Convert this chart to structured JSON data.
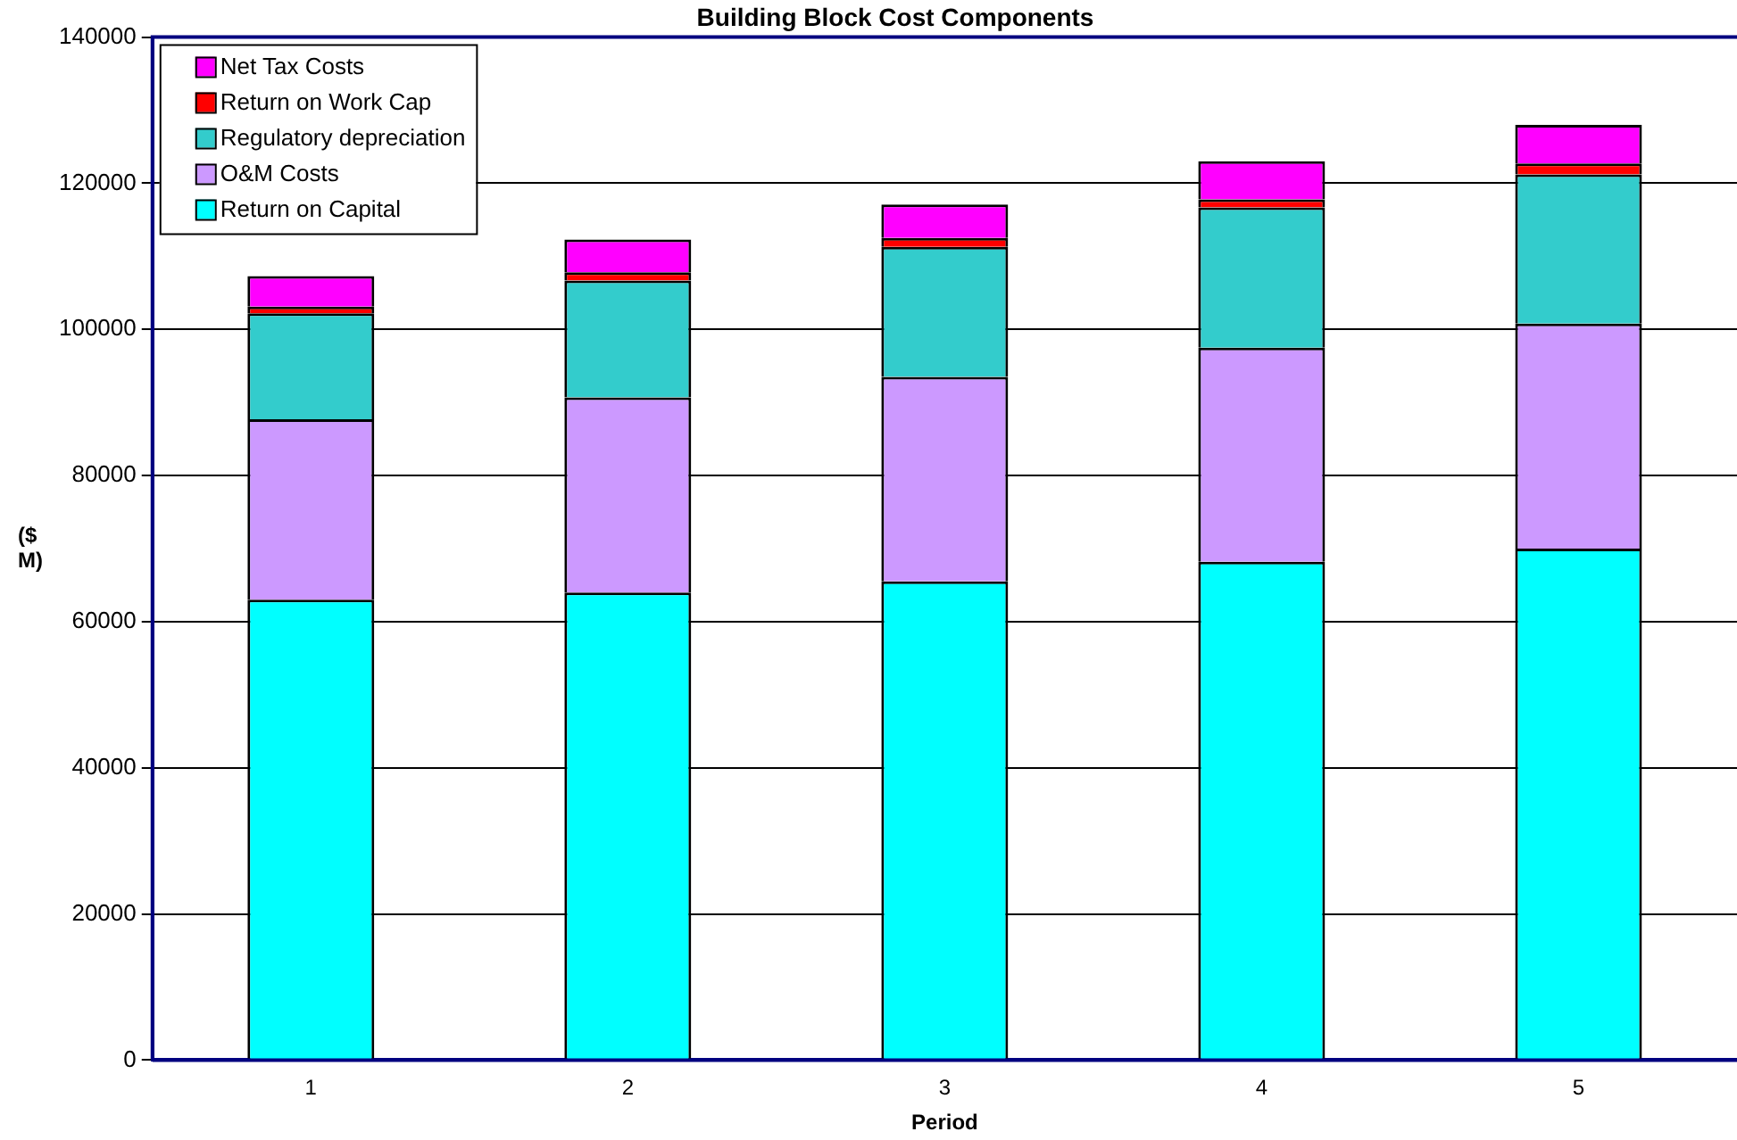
{
  "chart_data": {
    "type": "bar",
    "title": "Building Block Cost Components",
    "xlabel": "Period",
    "ylabel": "($ M)",
    "categories": [
      "1",
      "2",
      "3",
      "4",
      "5"
    ],
    "stacked": true,
    "series": [
      {
        "name": "Return on Capital",
        "color": "#00ffff",
        "values": [
          63000,
          64000,
          65500,
          68200,
          70000
        ]
      },
      {
        "name": "O&M Costs",
        "color": "#cc99ff",
        "values": [
          24700,
          26700,
          28000,
          29300,
          30800
        ]
      },
      {
        "name": "Regulatory depreciation",
        "color": "#33cccc",
        "values": [
          14500,
          16000,
          17800,
          19200,
          20400
        ]
      },
      {
        "name": "Return on Work Cap",
        "color": "#ff0000",
        "values": [
          900,
          1100,
          1200,
          1100,
          1500
        ]
      },
      {
        "name": "Net Tax Costs",
        "color": "#ff00ff",
        "values": [
          4200,
          4500,
          4600,
          5200,
          5300
        ]
      }
    ],
    "ylim": [
      0,
      140000
    ],
    "yticks": [
      0,
      20000,
      40000,
      60000,
      80000,
      100000,
      120000,
      140000
    ],
    "grid": "y",
    "legend": "top left"
  }
}
